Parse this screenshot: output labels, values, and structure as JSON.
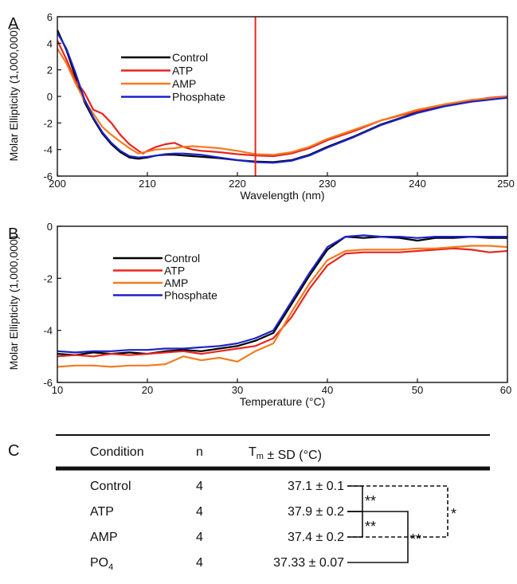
{
  "chart_data": [
    {
      "panel": "A",
      "type": "line",
      "xlabel": "Wavelength (nm)",
      "ylabel": "Molar Ellipticity (1,000,000)",
      "xlim": [
        200,
        250
      ],
      "ylim": [
        -6,
        6
      ],
      "xticks": [
        200,
        210,
        220,
        230,
        240,
        250
      ],
      "yticks": [
        6,
        4,
        2,
        0,
        -2,
        -4,
        -6
      ],
      "vline_x": 222,
      "legend": "upper-left-inside",
      "series": [
        {
          "name": "Control",
          "color": "#000000",
          "points": [
            [
              200,
              5
            ],
            [
              201,
              3.5
            ],
            [
              202,
              1.5
            ],
            [
              203,
              -0.4
            ],
            [
              204,
              -1.7
            ],
            [
              205,
              -2.8
            ],
            [
              206,
              -3.6
            ],
            [
              207,
              -4.2
            ],
            [
              208,
              -4.6
            ],
            [
              209,
              -4.7
            ],
            [
              210,
              -4.6
            ],
            [
              211,
              -4.45
            ],
            [
              212,
              -4.4
            ],
            [
              213,
              -4.4
            ],
            [
              214,
              -4.45
            ],
            [
              215,
              -4.5
            ],
            [
              216,
              -4.55
            ],
            [
              218,
              -4.65
            ],
            [
              220,
              -4.8
            ],
            [
              222,
              -4.9
            ],
            [
              224,
              -4.95
            ],
            [
              226,
              -4.8
            ],
            [
              228,
              -4.4
            ],
            [
              230,
              -3.8
            ],
            [
              233,
              -3.0
            ],
            [
              236,
              -2.1
            ],
            [
              240,
              -1.2
            ],
            [
              243,
              -0.7
            ],
            [
              246,
              -0.35
            ],
            [
              250,
              -0.1
            ]
          ]
        },
        {
          "name": "ATP",
          "color": "#e8241f",
          "points": [
            [
              200,
              4.2
            ],
            [
              201,
              2.8
            ],
            [
              202,
              1.2
            ],
            [
              203,
              0.3
            ],
            [
              204,
              -1.0
            ],
            [
              205,
              -1.3
            ],
            [
              206,
              -2.0
            ],
            [
              207,
              -2.9
            ],
            [
              208,
              -3.6
            ],
            [
              209,
              -4.1
            ],
            [
              209.5,
              -4.3
            ],
            [
              210,
              -4.1
            ],
            [
              211,
              -3.8
            ],
            [
              212,
              -3.6
            ],
            [
              213,
              -3.5
            ],
            [
              214,
              -3.8
            ],
            [
              215,
              -4.0
            ],
            [
              216,
              -4.1
            ],
            [
              218,
              -4.2
            ],
            [
              220,
              -4.35
            ],
            [
              222,
              -4.45
            ],
            [
              224,
              -4.5
            ],
            [
              226,
              -4.3
            ],
            [
              228,
              -3.9
            ],
            [
              230,
              -3.3
            ],
            [
              233,
              -2.6
            ],
            [
              236,
              -1.8
            ],
            [
              240,
              -1.1
            ],
            [
              243,
              -0.6
            ],
            [
              246,
              -0.3
            ],
            [
              248,
              -0.1
            ],
            [
              250,
              0.0
            ]
          ]
        },
        {
          "name": "AMP",
          "color": "#f47b20",
          "points": [
            [
              200,
              3.6
            ],
            [
              201,
              2.5
            ],
            [
              202,
              1.0
            ],
            [
              203,
              -0.3
            ],
            [
              204,
              -1.3
            ],
            [
              205,
              -2.3
            ],
            [
              206,
              -2.9
            ],
            [
              207,
              -3.4
            ],
            [
              208,
              -3.9
            ],
            [
              209,
              -4.3
            ],
            [
              210,
              -4.15
            ],
            [
              211,
              -4.0
            ],
            [
              212,
              -3.95
            ],
            [
              213,
              -3.9
            ],
            [
              214,
              -3.8
            ],
            [
              215,
              -3.75
            ],
            [
              216,
              -3.8
            ],
            [
              218,
              -3.9
            ],
            [
              220,
              -4.1
            ],
            [
              222,
              -4.35
            ],
            [
              224,
              -4.4
            ],
            [
              226,
              -4.2
            ],
            [
              228,
              -3.8
            ],
            [
              230,
              -3.2
            ],
            [
              233,
              -2.5
            ],
            [
              236,
              -1.8
            ],
            [
              240,
              -1.0
            ],
            [
              243,
              -0.6
            ],
            [
              246,
              -0.25
            ],
            [
              250,
              -0.05
            ]
          ]
        },
        {
          "name": "Phosphate",
          "color": "#1a22c8",
          "points": [
            [
              200,
              4.8
            ],
            [
              201,
              3.6
            ],
            [
              202,
              1.8
            ],
            [
              203,
              -0.2
            ],
            [
              204,
              -1.6
            ],
            [
              205,
              -2.7
            ],
            [
              206,
              -3.5
            ],
            [
              207,
              -4.1
            ],
            [
              208,
              -4.5
            ],
            [
              209,
              -4.6
            ],
            [
              210,
              -4.55
            ],
            [
              211,
              -4.45
            ],
            [
              212,
              -4.35
            ],
            [
              213,
              -4.3
            ],
            [
              214,
              -4.3
            ],
            [
              215,
              -4.35
            ],
            [
              216,
              -4.4
            ],
            [
              218,
              -4.6
            ],
            [
              220,
              -4.8
            ],
            [
              222,
              -4.95
            ],
            [
              224,
              -5.0
            ],
            [
              226,
              -4.85
            ],
            [
              228,
              -4.45
            ],
            [
              230,
              -3.85
            ],
            [
              233,
              -3.05
            ],
            [
              236,
              -2.15
            ],
            [
              240,
              -1.25
            ],
            [
              243,
              -0.75
            ],
            [
              246,
              -0.4
            ],
            [
              250,
              -0.1
            ]
          ]
        }
      ]
    },
    {
      "panel": "B",
      "type": "line",
      "xlabel": "Temperature (°C)",
      "ylabel": "Molar Ellipticity (1,000,000)",
      "xlim": [
        10,
        60
      ],
      "ylim": [
        -6,
        0
      ],
      "xticks": [
        10,
        20,
        30,
        40,
        50,
        60
      ],
      "yticks": [
        0,
        -2,
        -4,
        -6
      ],
      "legend": "upper-left-inside",
      "series": [
        {
          "name": "Control",
          "color": "#000000",
          "points": [
            [
              10,
              -4.9
            ],
            [
              12,
              -4.95
            ],
            [
              14,
              -4.85
            ],
            [
              16,
              -4.9
            ],
            [
              18,
              -4.85
            ],
            [
              20,
              -4.9
            ],
            [
              22,
              -4.8
            ],
            [
              24,
              -4.75
            ],
            [
              26,
              -4.8
            ],
            [
              28,
              -4.7
            ],
            [
              30,
              -4.6
            ],
            [
              32,
              -4.4
            ],
            [
              34,
              -4.1
            ],
            [
              36,
              -3.0
            ],
            [
              38,
              -1.9
            ],
            [
              40,
              -0.9
            ],
            [
              42,
              -0.4
            ],
            [
              44,
              -0.45
            ],
            [
              46,
              -0.4
            ],
            [
              48,
              -0.45
            ],
            [
              50,
              -0.55
            ],
            [
              52,
              -0.45
            ],
            [
              54,
              -0.45
            ],
            [
              56,
              -0.4
            ],
            [
              58,
              -0.45
            ],
            [
              60,
              -0.45
            ]
          ]
        },
        {
          "name": "ATP",
          "color": "#e8241f",
          "points": [
            [
              10,
              -5.0
            ],
            [
              12,
              -4.95
            ],
            [
              14,
              -5.0
            ],
            [
              16,
              -4.9
            ],
            [
              18,
              -4.95
            ],
            [
              20,
              -4.9
            ],
            [
              22,
              -4.85
            ],
            [
              24,
              -4.8
            ],
            [
              26,
              -4.9
            ],
            [
              28,
              -4.8
            ],
            [
              30,
              -4.7
            ],
            [
              32,
              -4.6
            ],
            [
              34,
              -4.3
            ],
            [
              36,
              -3.5
            ],
            [
              38,
              -2.4
            ],
            [
              40,
              -1.5
            ],
            [
              42,
              -1.05
            ],
            [
              44,
              -1.0
            ],
            [
              46,
              -1.0
            ],
            [
              48,
              -1.0
            ],
            [
              50,
              -0.95
            ],
            [
              52,
              -0.9
            ],
            [
              54,
              -0.85
            ],
            [
              56,
              -0.9
            ],
            [
              58,
              -1.0
            ],
            [
              60,
              -0.95
            ]
          ]
        },
        {
          "name": "AMP",
          "color": "#f47b20",
          "points": [
            [
              10,
              -5.4
            ],
            [
              12,
              -5.35
            ],
            [
              14,
              -5.35
            ],
            [
              16,
              -5.4
            ],
            [
              18,
              -5.35
            ],
            [
              20,
              -5.35
            ],
            [
              22,
              -5.3
            ],
            [
              24,
              -5.0
            ],
            [
              26,
              -5.15
            ],
            [
              28,
              -5.05
            ],
            [
              30,
              -5.2
            ],
            [
              32,
              -4.8
            ],
            [
              34,
              -4.5
            ],
            [
              36,
              -3.3
            ],
            [
              38,
              -2.2
            ],
            [
              40,
              -1.3
            ],
            [
              42,
              -0.95
            ],
            [
              44,
              -0.9
            ],
            [
              46,
              -0.9
            ],
            [
              48,
              -0.9
            ],
            [
              50,
              -0.85
            ],
            [
              52,
              -0.85
            ],
            [
              54,
              -0.8
            ],
            [
              56,
              -0.75
            ],
            [
              58,
              -0.75
            ],
            [
              60,
              -0.8
            ]
          ]
        },
        {
          "name": "Phosphate",
          "color": "#1a22c8",
          "points": [
            [
              10,
              -4.8
            ],
            [
              12,
              -4.85
            ],
            [
              14,
              -4.8
            ],
            [
              16,
              -4.8
            ],
            [
              18,
              -4.75
            ],
            [
              20,
              -4.75
            ],
            [
              22,
              -4.7
            ],
            [
              24,
              -4.7
            ],
            [
              26,
              -4.65
            ],
            [
              28,
              -4.6
            ],
            [
              30,
              -4.5
            ],
            [
              32,
              -4.3
            ],
            [
              34,
              -4.0
            ],
            [
              36,
              -2.9
            ],
            [
              38,
              -1.8
            ],
            [
              40,
              -0.8
            ],
            [
              42,
              -0.4
            ],
            [
              44,
              -0.35
            ],
            [
              46,
              -0.4
            ],
            [
              48,
              -0.4
            ],
            [
              50,
              -0.45
            ],
            [
              52,
              -0.4
            ],
            [
              54,
              -0.4
            ],
            [
              56,
              -0.4
            ],
            [
              58,
              -0.4
            ],
            [
              60,
              -0.4
            ]
          ]
        }
      ]
    },
    {
      "panel": "C",
      "type": "table",
      "columns": [
        "Condition",
        "n",
        "T_m ± SD (°C)"
      ],
      "rows": [
        [
          "Control",
          "4",
          "37.1 ± 0.1"
        ],
        [
          "ATP",
          "4",
          "37.9 ± 0.2"
        ],
        [
          "AMP",
          "4",
          "37.4 ± 0.2"
        ],
        [
          "PO_4",
          "4",
          "37.33 ± 0.07"
        ]
      ],
      "comparisons": [
        {
          "from": "Control",
          "to": "ATP",
          "label": "**",
          "style": "solid"
        },
        {
          "from": "ATP",
          "to": "AMP",
          "label": "**",
          "style": "solid"
        },
        {
          "from": "ATP",
          "to": "PO_4",
          "label": "**",
          "style": "solid"
        },
        {
          "from": "Control",
          "to": "AMP",
          "label": "*",
          "style": "dashed"
        }
      ]
    }
  ]
}
